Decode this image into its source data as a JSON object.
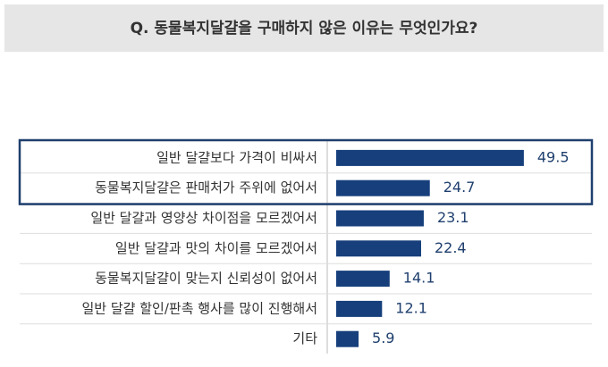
{
  "chart_data": {
    "type": "hbar",
    "title": "Q. 동물복지달걀을 구매하지 않은 이유는 무엇인가요?",
    "categories": [
      "일반 달걀보다 가격이 비싸서",
      "동물복지달걀은 판매처가 주위에 없어서",
      "일반 달걀과 영양상 차이점을 모르겠어서",
      "일반 달걀과 맛의 차이를 모르겠어서",
      "동물복지달걀이 맞는지 신뢰성이 없어서",
      "일반 달걀 할인/판촉 행사를 많이 진행해서",
      "기타"
    ],
    "values": [
      49.5,
      24.7,
      23.1,
      22.4,
      14.1,
      12.1,
      5.9
    ],
    "color": "#163f7c"
  }
}
